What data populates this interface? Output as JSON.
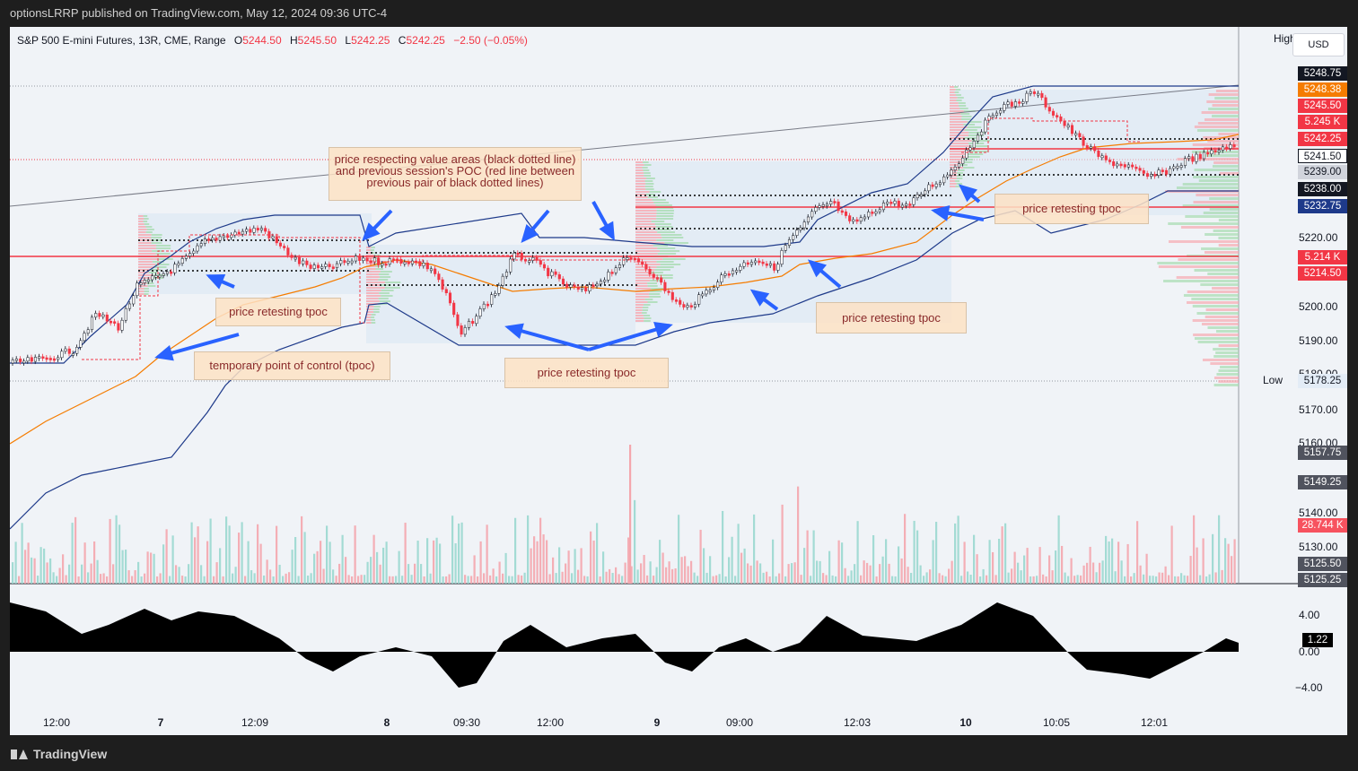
{
  "header": {
    "publisher_line": "optionsLRRP published on TradingView.com, May 12, 2024 09:36 UTC-4"
  },
  "legend": {
    "symbol": "S&P 500 E-mini Futures, 13R, CME, Range",
    "open_label": "O",
    "open": "5244.50",
    "high_label": "H",
    "high": "5245.50",
    "low_label": "L",
    "low": "5242.25",
    "close_label": "C",
    "close": "5242.25",
    "change": "−2.50 (−0.05%)"
  },
  "currency": "USD",
  "high_tag": "High",
  "low_tag": "Low",
  "annotations": {
    "note1": "price respecting value areas (black dotted line) and previous session's POC (red line between previous pair of black dotted lines)",
    "note2": "price retesting tpoc",
    "note3": "temporary point of control (tpoc)",
    "note4": "price retesting tpoc",
    "note5": "price retesting tpoc",
    "note6": "price retesting tpoc"
  },
  "price_axis": {
    "ticks": [
      "5220.00",
      "5200.00",
      "5190.00",
      "5180.00",
      "5170.00",
      "5160.00",
      "5140.00",
      "5130.00"
    ],
    "tags": [
      {
        "text": "5248.75",
        "color": "#131722"
      },
      {
        "text": "5248.38",
        "color": "#f57c00"
      },
      {
        "text": "5245.50",
        "color": "#f23645"
      },
      {
        "text": "5.245 K",
        "color": "#f23645"
      },
      {
        "text": "5242.25",
        "color": "#f23645"
      },
      {
        "text": "5241.50",
        "color": "#ffffff"
      },
      {
        "text": "5239.00",
        "color": "#d1d4dc"
      },
      {
        "text": "5238.00",
        "color": "#131722"
      },
      {
        "text": "5232.75",
        "color": "#1e3a8a"
      },
      {
        "text": "5.214 K",
        "color": "#f23645"
      },
      {
        "text": "5214.50",
        "color": "#f23645"
      },
      {
        "text": "5178.25",
        "color": "#e3ecf6"
      },
      {
        "text": "5157.75",
        "color": "#50535e"
      },
      {
        "text": "5149.25",
        "color": "#50535e"
      },
      {
        "text": "28.744 K",
        "color": "#f7525f"
      },
      {
        "text": "5125.50",
        "color": "#50535e"
      },
      {
        "text": "5125.25",
        "color": "#50535e"
      }
    ]
  },
  "oscillator": {
    "ticks": [
      "4.00",
      "0.00",
      "−4.00"
    ],
    "value": "1.22"
  },
  "time_axis": [
    "12:00",
    "7",
    "12:09",
    "8",
    "09:30",
    "12:00",
    "9",
    "09:00",
    "12:03",
    "10",
    "10:05",
    "12:01"
  ],
  "colors": {
    "up": "#26a69a",
    "down": "#f23645",
    "poc": "#f23645",
    "vwap": "#f57c00",
    "band": "#1e3a8a",
    "arrow": "#2962ff"
  },
  "footer": {
    "brand": "TradingView"
  }
}
